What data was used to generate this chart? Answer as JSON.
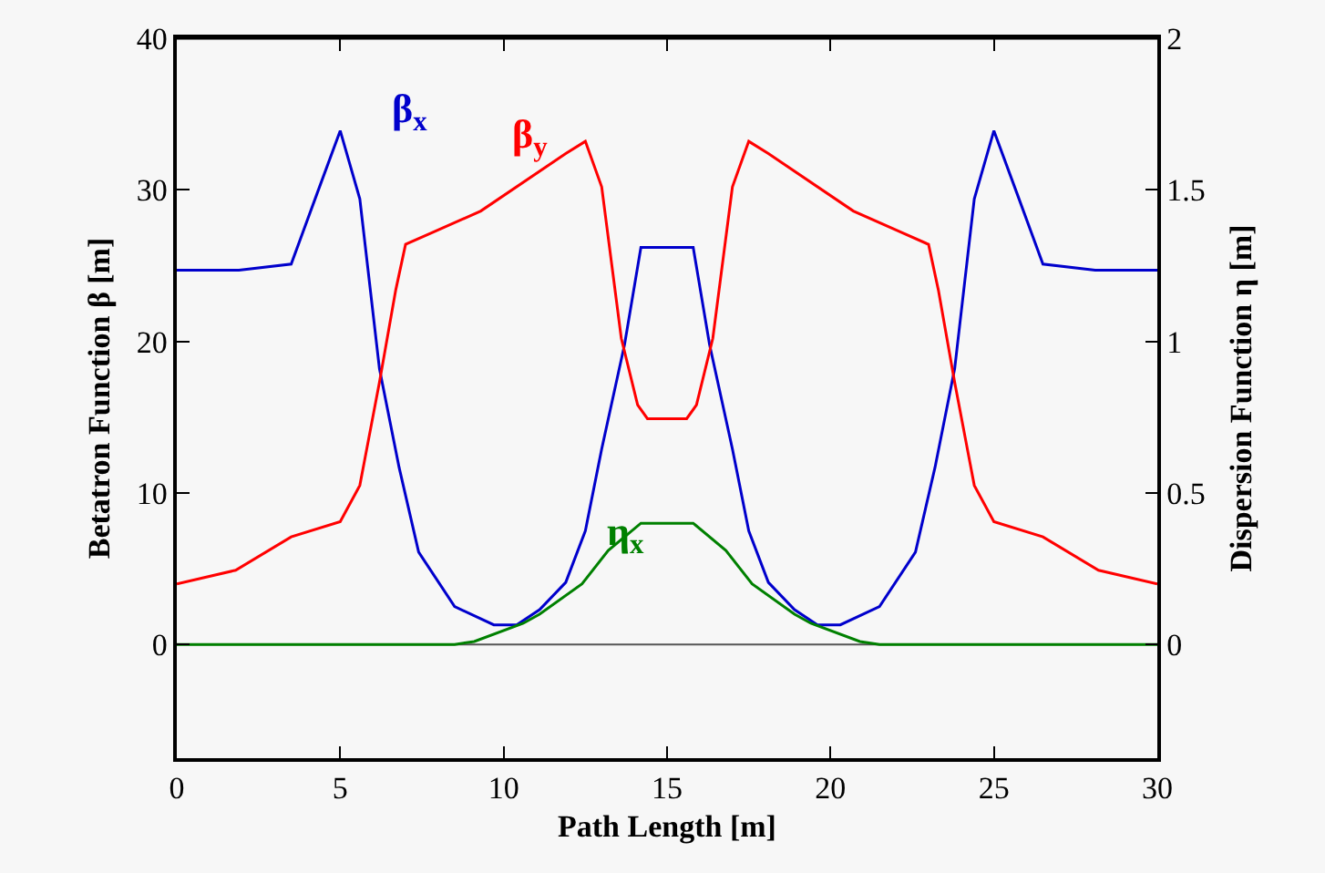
{
  "chart_data": {
    "type": "line",
    "xlabel": "Path Length [m]",
    "ylabel": "Betatron Function β [m]",
    "y2label": "Dispersion Function η [m]",
    "xlim": [
      0,
      30
    ],
    "xticks": [
      0,
      5,
      10,
      15,
      20,
      25,
      30
    ],
    "ylim": [
      -7.5,
      40
    ],
    "yticks": [
      0,
      10,
      20,
      30,
      40
    ],
    "y2lim": [
      -0.375,
      2
    ],
    "y2ticks": [
      0,
      0.5,
      1,
      1.5,
      2
    ],
    "grid": false,
    "legend": false,
    "marker": "none",
    "line_style": "solid",
    "ref_lines": [
      {
        "axis": "y",
        "value": 0,
        "color": "#555555"
      }
    ],
    "series": [
      {
        "name": "β$_{x}$",
        "color": "#0000cc",
        "x": [
          0,
          1.9,
          3.5,
          4.3,
          5.0,
          5.6,
          6.2,
          6.8,
          7.4,
          8.5,
          9.7,
          10.4,
          11.1,
          11.9,
          12.5,
          13.0,
          13.7,
          14.2,
          15.8,
          16.3,
          17.0,
          17.5,
          18.1,
          18.9,
          19.6,
          20.3,
          21.5,
          22.6,
          23.2,
          23.8,
          24.4,
          25.0,
          25.7,
          26.5,
          28.1,
          30
        ],
        "values": [
          24.7,
          24.7,
          25.1,
          29.8,
          33.9,
          29.4,
          18.2,
          11.7,
          6.1,
          2.5,
          1.3,
          1.3,
          2.3,
          4.1,
          7.5,
          12.9,
          19.8,
          26.2,
          26.2,
          19.8,
          12.9,
          7.5,
          4.1,
          2.3,
          1.3,
          1.3,
          2.5,
          6.1,
          11.7,
          18.2,
          29.4,
          33.9,
          29.8,
          25.1,
          24.7,
          24.7
        ]
      },
      {
        "name": "β$_{y}$",
        "color": "#ff0000",
        "x": [
          0,
          1.8,
          3.5,
          5.0,
          5.6,
          6.2,
          6.7,
          7.0,
          9.3,
          11.9,
          12.5,
          13.0,
          13.6,
          14.1,
          14.4,
          15.6,
          15.9,
          16.4,
          17.0,
          17.5,
          18.1,
          20.7,
          23.0,
          23.3,
          23.8,
          24.4,
          25.0,
          26.5,
          28.2,
          30
        ],
        "values": [
          4.0,
          4.9,
          7.1,
          8.1,
          10.5,
          17.3,
          23.4,
          26.4,
          28.6,
          32.4,
          33.2,
          30.2,
          20.2,
          15.8,
          14.9,
          14.9,
          15.8,
          20.2,
          30.2,
          33.2,
          32.4,
          28.6,
          26.4,
          23.4,
          17.3,
          10.5,
          8.1,
          7.1,
          4.9,
          4.0
        ]
      },
      {
        "name": "η$_{x}$",
        "color": "#008000",
        "axis": "y2",
        "x": [
          0,
          8.5,
          9.1,
          10.6,
          11.1,
          12.4,
          13.2,
          14.2,
          15.8,
          16.8,
          17.6,
          18.9,
          19.4,
          20.9,
          21.5,
          30
        ],
        "values": [
          0,
          0,
          0.01,
          0.07,
          0.1,
          0.2,
          0.31,
          0.4,
          0.4,
          0.31,
          0.2,
          0.1,
          0.07,
          0.01,
          0,
          0
        ]
      }
    ]
  }
}
